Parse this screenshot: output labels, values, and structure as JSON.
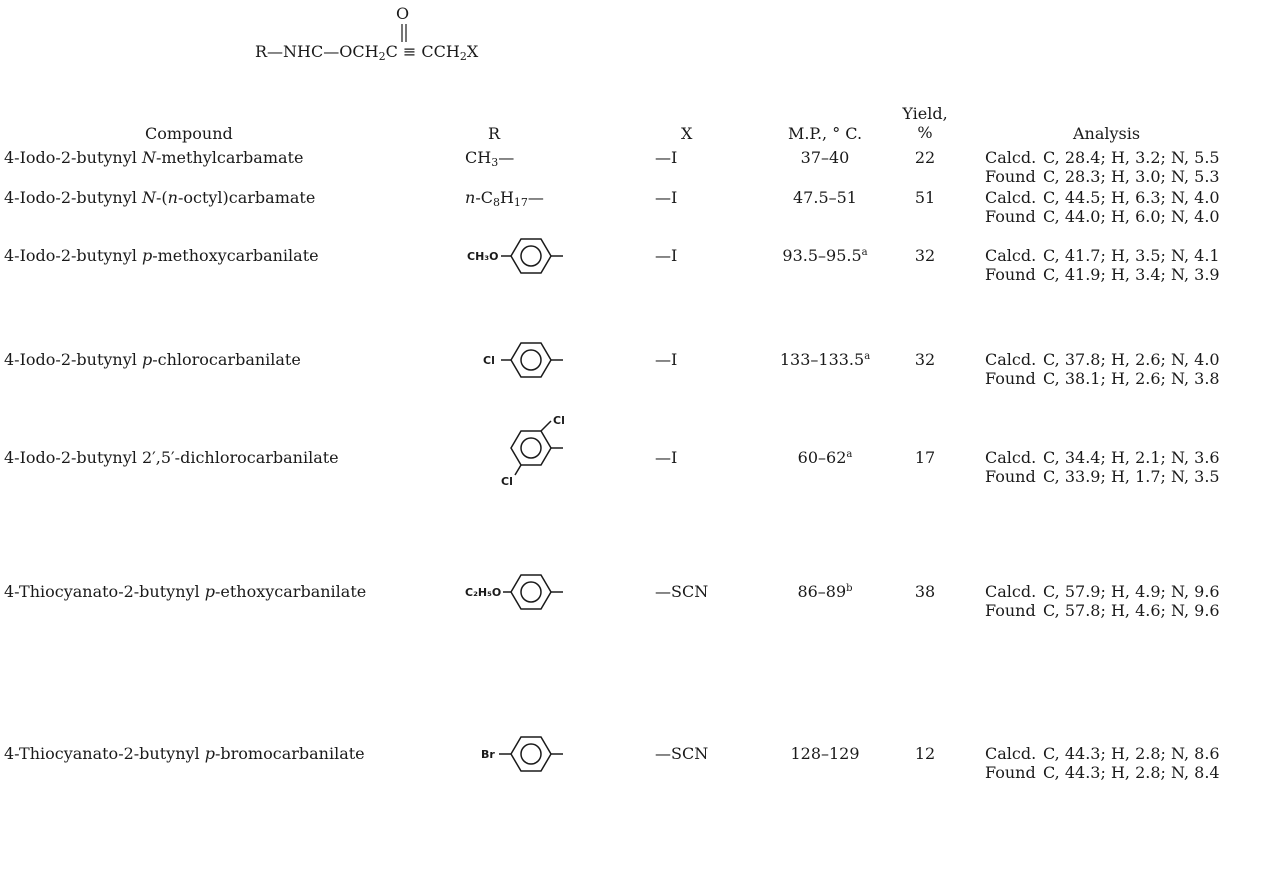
{
  "formula": {
    "oxygen": "O",
    "left": "R—NHC—OCH",
    "sub1": "2",
    "mid": "C ≡ CCH",
    "sub2": "2",
    "right": "X"
  },
  "headers": {
    "compound": "Compound",
    "r": "R",
    "x": "X",
    "mp": "M.P., ° C.",
    "yield_1": "Yield,",
    "yield_2": "%",
    "analysis": "Analysis"
  },
  "analysis_labels": {
    "calcd": "Calcd.",
    "found": "Found"
  },
  "rows": [
    {
      "name_pre": "4-Iodo-2-butynyl ",
      "name_it": "N",
      "name_post": "-methylcarbamate",
      "r_text": "CH",
      "r_sub": "3",
      "r_tail": "—",
      "x": "—I",
      "mp": "37–40",
      "mp_note": "",
      "yield": "22",
      "calcd": "C, 28.4; H, 3.2; N, 5.5",
      "found": "C, 28.3; H, 3.0; N, 5.3"
    },
    {
      "name_pre": "4-Iodo-2-butynyl ",
      "name_it": "N",
      "name_post": "-(",
      "name_it2": "n",
      "name_post2": "-octyl)carbamate",
      "r_it": "n",
      "r_text": "-C",
      "r_sub": "8",
      "r_text2": "H",
      "r_sub2": "17",
      "r_tail": "—",
      "x": "—I",
      "mp": "47.5–51",
      "mp_note": "",
      "yield": "51",
      "calcd": "C, 44.5; H, 6.3; N, 4.0",
      "found": "C, 44.0; H, 6.0; N, 4.0"
    },
    {
      "name_pre": "4-Iodo-2-butynyl ",
      "name_it": "p",
      "name_post": "-methoxycarbanilate",
      "r_substituent": "CH₃O",
      "x": "—I",
      "mp": "93.5–95.5",
      "mp_note": "a",
      "yield": "32",
      "calcd": "C, 41.7; H, 3.5; N, 4.1",
      "found": "C, 41.9; H, 3.4; N, 3.9"
    },
    {
      "name_pre": "4-Iodo-2-butynyl ",
      "name_it": "p",
      "name_post": "-chlorocarbanilate",
      "r_substituent": "Cl",
      "x": "—I",
      "mp": "133–133.5",
      "mp_note": "a",
      "yield": "32",
      "calcd": "C, 37.8; H, 2.6; N, 4.0",
      "found": "C, 38.1; H, 2.6; N, 3.8"
    },
    {
      "name_pre": "4-Iodo-2-butynyl 2′,5′-dichlorocarbanilate",
      "r_cl_top": "Cl",
      "r_cl_bottom": "Cl",
      "x": "—I",
      "mp": "60–62",
      "mp_note": "a",
      "yield": "17",
      "calcd": "C, 34.4; H, 2.1; N, 3.6",
      "found": "C, 33.9; H, 1.7; N, 3.5"
    },
    {
      "name_pre": "4-Thiocyanato-2-butynyl ",
      "name_it": "p",
      "name_post": "-ethoxycarbanilate",
      "r_substituent": "C₂H₅O",
      "x": "—SCN",
      "mp": "86–89",
      "mp_note": "b",
      "yield": "38",
      "calcd": "C, 57.9; H, 4.9; N, 9.6",
      "found": "C, 57.8; H, 4.6; N, 9.6"
    },
    {
      "name_pre": "4-Thiocyanato-2-butynyl ",
      "name_it": "p",
      "name_post": "-bromocarbanilate",
      "r_substituent": "Br",
      "x": "—SCN",
      "mp": "128–129",
      "mp_note": "",
      "yield": "12",
      "calcd": "C, 44.3; H, 2.8; N, 8.6",
      "found": "C, 44.3; H, 2.8; N, 8.4"
    }
  ]
}
